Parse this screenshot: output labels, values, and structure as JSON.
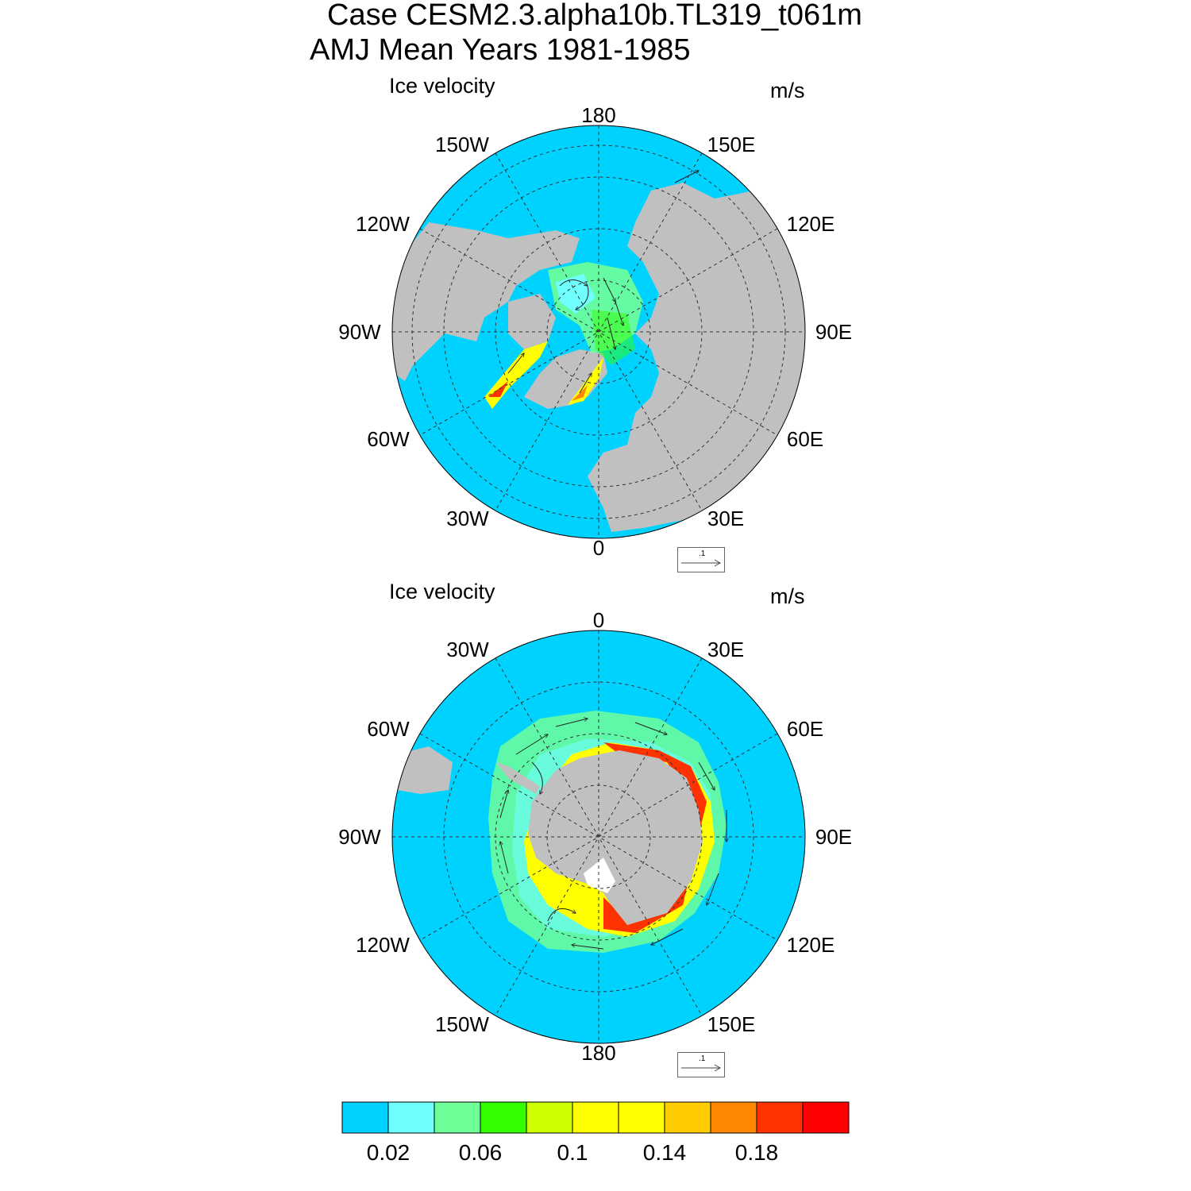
{
  "header": {
    "title_line1": "Case CESM2.3.alpha10b.TL319_t061m",
    "title_line2": "AMJ Mean   Years 1981-1985"
  },
  "panels": [
    {
      "id": "north",
      "left_label": "Ice velocity",
      "right_label": "m/s",
      "lon_labels": [
        "180",
        "150E",
        "120E",
        "90E",
        "60E",
        "30E",
        "0",
        "30W",
        "60W",
        "90W",
        "120W",
        "150W"
      ],
      "reference_vector": ".1"
    },
    {
      "id": "south",
      "left_label": "Ice velocity",
      "right_label": "m/s",
      "lon_labels": [
        "0",
        "30E",
        "60E",
        "90E",
        "120E",
        "150E",
        "180",
        "150W",
        "120W",
        "90W",
        "60W",
        "30W"
      ],
      "reference_vector": ".1"
    }
  ],
  "colorbar": {
    "colors": [
      "#00d2ff",
      "#6fffff",
      "#6fff99",
      "#33ff00",
      "#ccff00",
      "#ffff00",
      "#ffff00",
      "#ffcc00",
      "#ff8800",
      "#ff3300",
      "#ff0000"
    ],
    "labels": [
      "0.02",
      "0.06",
      "0.1",
      "0.14",
      "0.18"
    ]
  },
  "map_colors": {
    "ocean": "#00d2ff",
    "land": "#c0c0c0",
    "missing": "#ffffff"
  }
}
